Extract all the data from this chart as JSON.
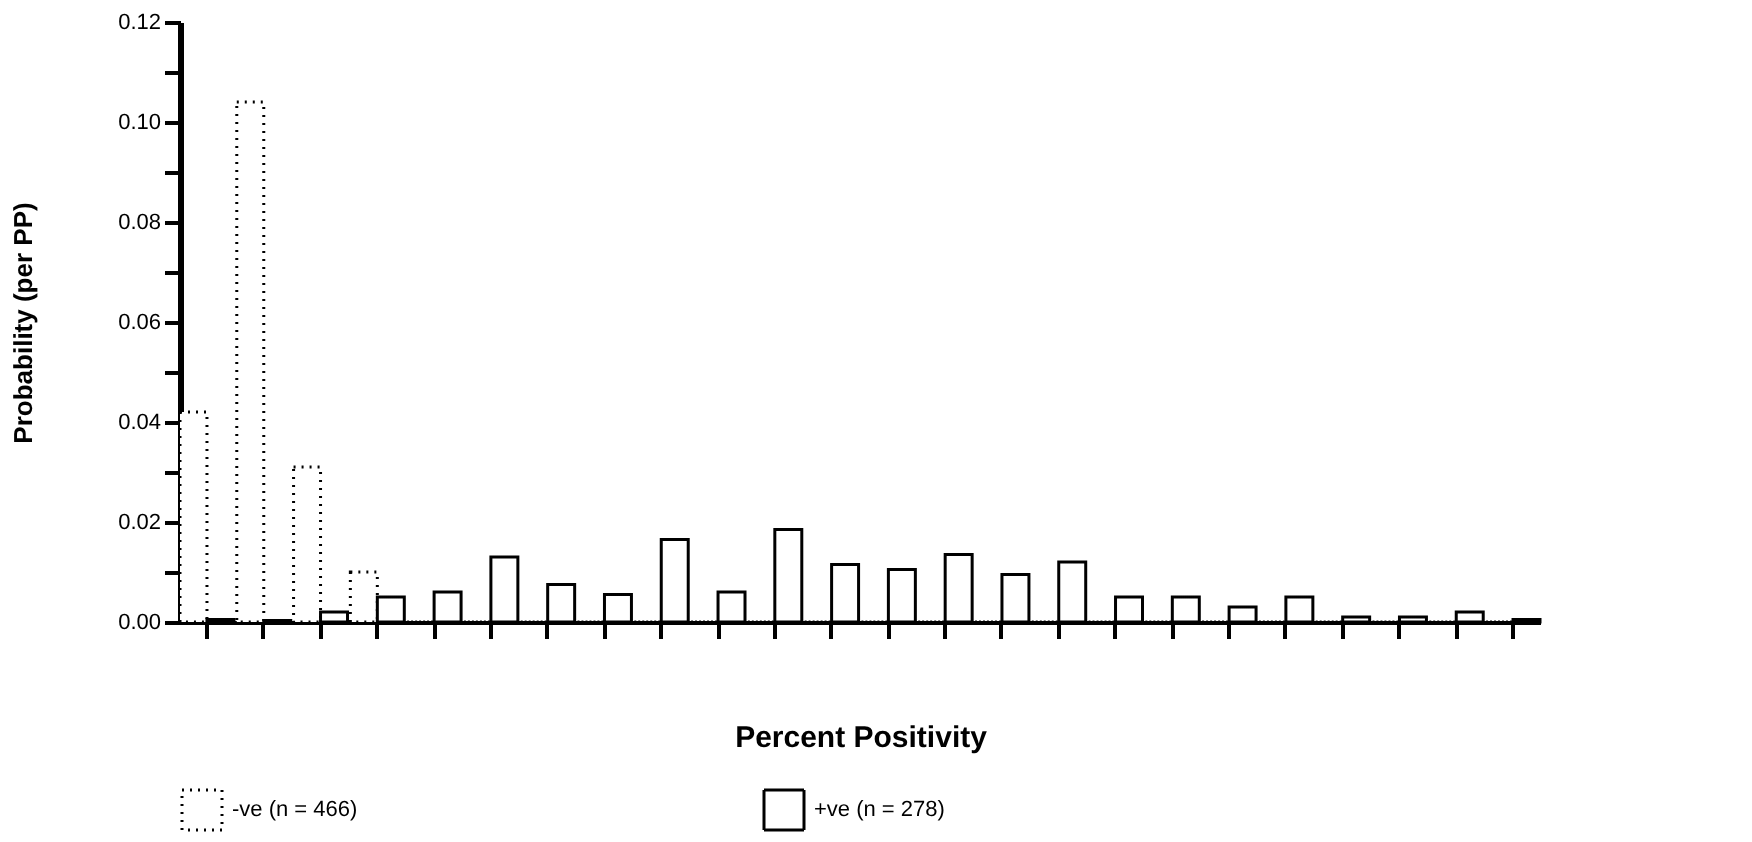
{
  "chart_data": {
    "type": "bar",
    "xlabel": "Percent Positivity",
    "ylabel": "Probability (per PP)",
    "categories": [
      null,
      null,
      null,
      null,
      null,
      null,
      null,
      null,
      null,
      null,
      null,
      null,
      null,
      null,
      null,
      null,
      null,
      null,
      null,
      null,
      null,
      null,
      null,
      null
    ],
    "series": [
      {
        "name": "-ve (n = 466)",
        "color": "#000000",
        "line_style": "dotted",
        "values": [
          0.042,
          0.104,
          0.031,
          0.01,
          0,
          0,
          0,
          0,
          0,
          0,
          0,
          0,
          0,
          0,
          0,
          0,
          0,
          0,
          0,
          0,
          0,
          0,
          0,
          0
        ]
      },
      {
        "name": "+ve (n = 278)",
        "color": "#000000",
        "line_style": "solid",
        "values": [
          0.0005,
          0.0003,
          0.002,
          0.005,
          0.006,
          0.013,
          0.0075,
          0.0055,
          0.0165,
          0.006,
          0.0185,
          0.0115,
          0.0105,
          0.0135,
          0.0095,
          0.012,
          0.005,
          0.005,
          0.003,
          0.005,
          0.001,
          0.001,
          0.002,
          0.0005
        ]
      }
    ],
    "ylim": [
      0,
      0.12
    ],
    "yticks": [
      {
        "value": 0,
        "label": "0.00"
      },
      {
        "value": 0.01,
        "label": null
      },
      {
        "value": 0.02,
        "label": "0.02"
      },
      {
        "value": 0.03,
        "label": null
      },
      {
        "value": 0.04,
        "label": "0.04"
      },
      {
        "value": 0.05,
        "label": null
      },
      {
        "value": 0.06,
        "label": "0.06"
      },
      {
        "value": 0.07,
        "label": null
      },
      {
        "value": 0.08,
        "label": "0.08"
      },
      {
        "value": 0.09,
        "label": null
      },
      {
        "value": 0.1,
        "label": "0.10"
      },
      {
        "value": 0.11,
        "label": null
      },
      {
        "value": 0.12,
        "label": "0.12"
      }
    ],
    "grid": false,
    "legend": "bottom"
  }
}
